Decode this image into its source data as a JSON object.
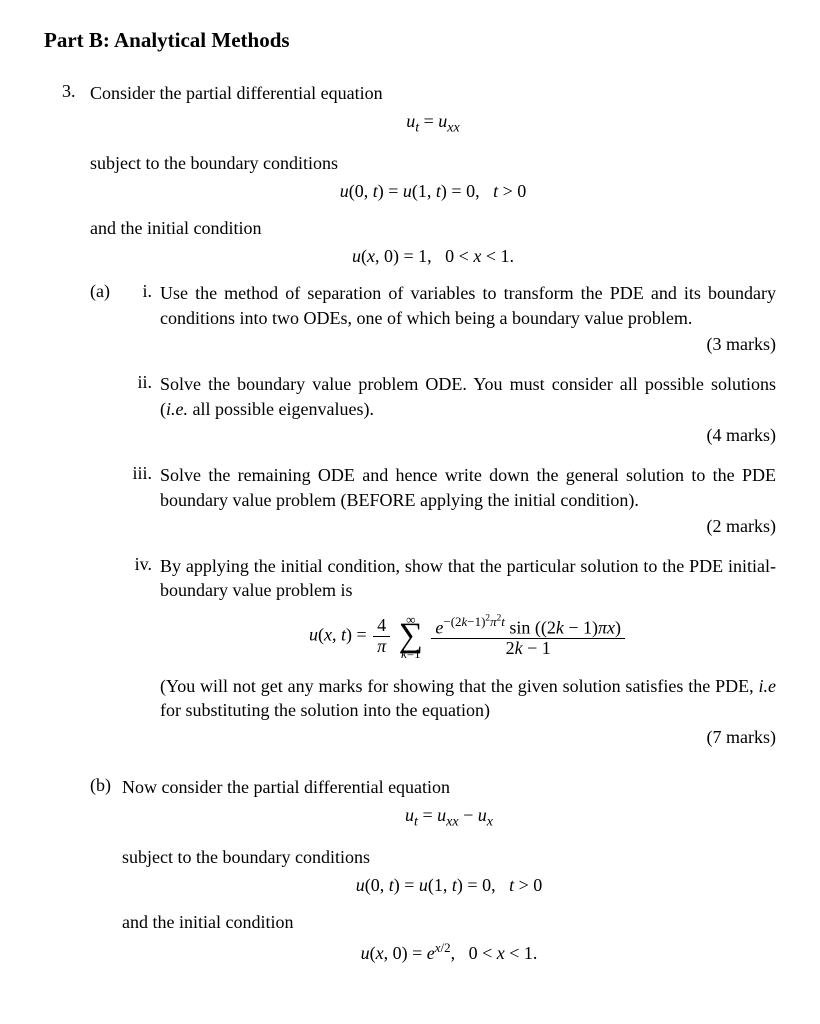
{
  "part_title": "Part B: Analytical Methods",
  "problem": {
    "number": "3.",
    "intro": "Consider the partial differential equation",
    "eq1_html": "<span class='ital'>u<sub>t</sub></span> = <span class='ital'>u<sub>xx</sub></span>",
    "bc_intro": "subject to the boundary conditions",
    "bc_eq_html": "<span class='ital'>u</span>(0, <span class='ital'>t</span>) = <span class='ital'>u</span>(1, <span class='ital'>t</span>) = 0,&nbsp;&nbsp;&nbsp;<span class='ital'>t</span> &gt; 0",
    "ic_intro": "and the initial condition",
    "ic_eq_html": "<span class='ital'>u</span>(<span class='ital'>x</span>, 0) = 1,&nbsp;&nbsp;&nbsp;0 &lt; <span class='ital'>x</span> &lt; 1.",
    "a": {
      "label": "(a)",
      "items": [
        {
          "label": "i.",
          "text": "Use the method of separation of variables to transform the PDE and its boundary conditions into two ODEs, one of which being a boundary value problem.",
          "marks": "(3 marks)"
        },
        {
          "label": "ii.",
          "text_html": "Solve the boundary value problem ODE. You must consider all possible solutions (<span class='ital'>i.e.</span> all possible eigenvalues).",
          "marks": "(4 marks)"
        },
        {
          "label": "iii.",
          "text": "Solve the remaining ODE and hence write down the general solution to the PDE boundary value problem (BEFORE applying the initial condition).",
          "marks": "(2 marks)"
        },
        {
          "label": "iv.",
          "text": "By applying the initial condition, show that the particular solution to the PDE initial-boundary value problem is",
          "formula_html": "<span class='ital'>u</span>(<span class='ital'>x</span>, <span class='ital'>t</span>) = <span class='frac'><span class='num'>4</span><span class='den'><span class='ital'>π</span></span></span> <span class='sum-wrap'><span class='sum-top'>∞</span><span class='sum-sym'>∑</span><span class='sum-bot'><span class='ital'>k</span>=1</span></span> <span class='frac'><span class='num'><span class='ital'>e</span><sup>−(2<span class='ital'>k</span>−1)<sup>2</sup><span class='ital'>π</span><sup>2</sup><span class='ital'>t</span></sup> sin ((2<span class='ital'>k</span> − 1)<span class='ital'>πx</span>)</span><span class='den'>2<span class='ital'>k</span> − 1</span></span>",
          "note_html": "(You will not get any marks for showing that the given solution satisfies the PDE, <span class='ital'>i.e</span> for substituting the solution into the equation)",
          "marks": "(7 marks)"
        }
      ]
    },
    "b": {
      "label": "(b)",
      "intro": "Now consider the partial differential equation",
      "eq_html": "<span class='ital'>u<sub>t</sub></span> = <span class='ital'>u<sub>xx</sub></span> − <span class='ital'>u<sub>x</sub></span>",
      "bc_intro": "subject to the boundary conditions",
      "bc_eq_html": "<span class='ital'>u</span>(0, <span class='ital'>t</span>) = <span class='ital'>u</span>(1, <span class='ital'>t</span>) = 0,&nbsp;&nbsp;&nbsp;<span class='ital'>t</span> &gt; 0",
      "ic_intro": "and the initial condition",
      "ic_eq_html": "<span class='ital'>u</span>(<span class='ital'>x</span>, 0) = <span class='ital'>e</span><sup><span class='ital'>x</span>/2</sup>,&nbsp;&nbsp;&nbsp;0 &lt; <span class='ital'>x</span> &lt; 1."
    }
  }
}
